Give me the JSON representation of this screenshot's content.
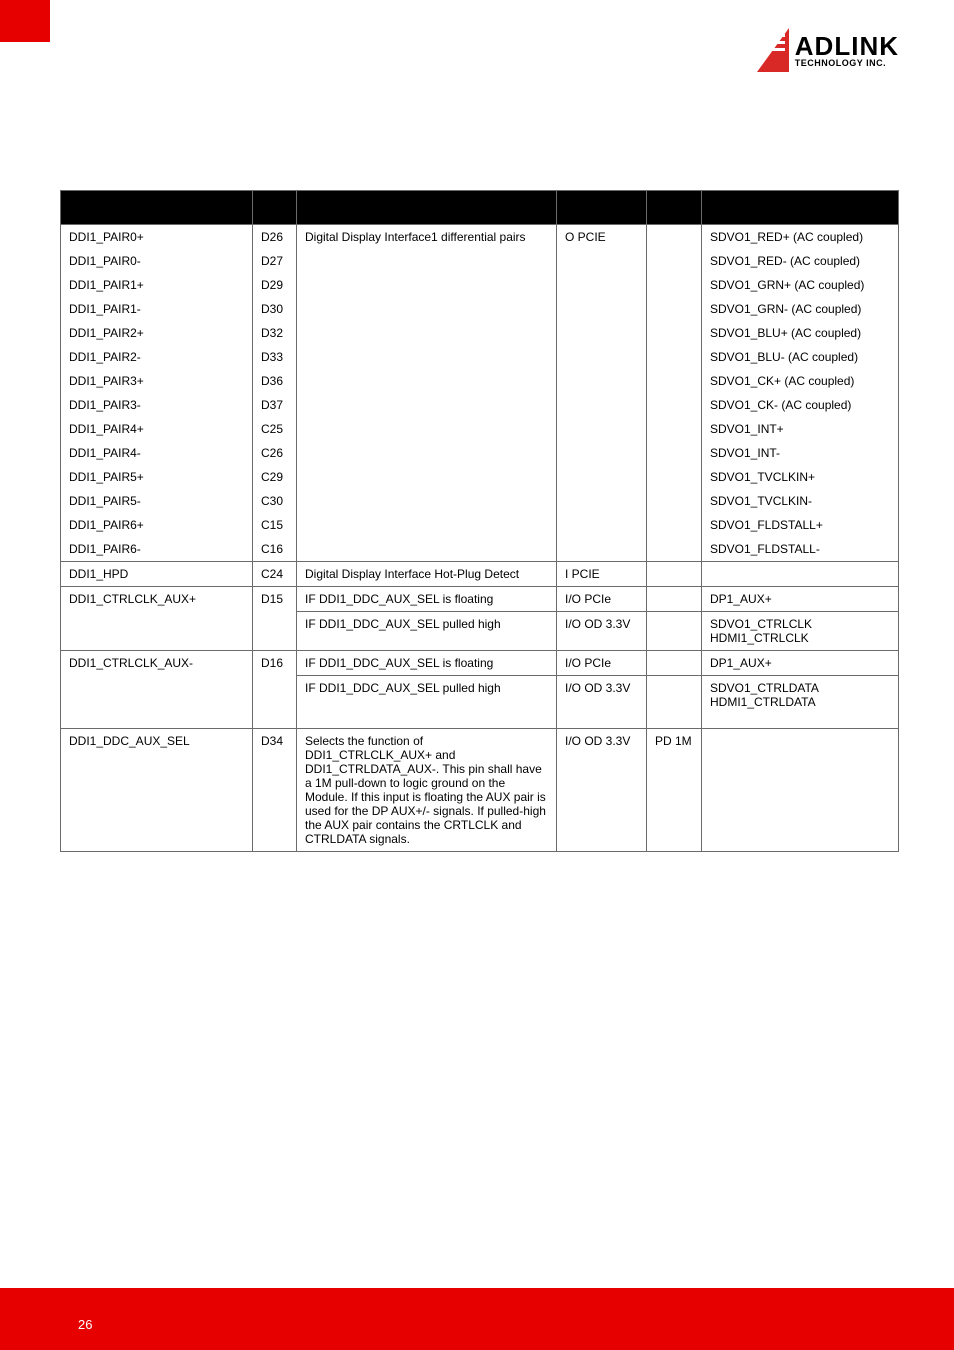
{
  "logo": {
    "main": "ADLINK",
    "sub": "TECHNOLOGY INC."
  },
  "page_number": "26",
  "table": {
    "headers": [
      "",
      "",
      "",
      "",
      "",
      ""
    ],
    "group1_desc": "Digital Display Interface1 differential pairs",
    "group1_type": "O PCIE",
    "group1": [
      {
        "signal": "DDI1_PAIR0+",
        "pin": "D26",
        "comment": "SDVO1_RED+  (AC coupled)"
      },
      {
        "signal": "DDI1_PAIR0-",
        "pin": "D27",
        "comment": "SDVO1_RED-  (AC coupled)"
      },
      {
        "signal": "DDI1_PAIR1+",
        "pin": "D29",
        "comment": "SDVO1_GRN+  (AC coupled)"
      },
      {
        "signal": "DDI1_PAIR1-",
        "pin": "D30",
        "comment": "SDVO1_GRN-  (AC coupled)"
      },
      {
        "signal": "DDI1_PAIR2+",
        "pin": "D32",
        "comment": "SDVO1_BLU+  (AC coupled)"
      },
      {
        "signal": "DDI1_PAIR2-",
        "pin": "D33",
        "comment": "SDVO1_BLU-  (AC coupled)"
      },
      {
        "signal": "DDI1_PAIR3+",
        "pin": "D36",
        "comment": "SDVO1_CK+  (AC coupled)"
      },
      {
        "signal": "DDI1_PAIR3-",
        "pin": "D37",
        "comment": "SDVO1_CK-  (AC coupled)"
      },
      {
        "signal": "DDI1_PAIR4+",
        "pin": "C25",
        "comment": "SDVO1_INT+"
      },
      {
        "signal": "DDI1_PAIR4-",
        "pin": "C26",
        "comment": "SDVO1_INT-"
      },
      {
        "signal": "DDI1_PAIR5+",
        "pin": "C29",
        "comment": "SDVO1_TVCLKIN+"
      },
      {
        "signal": "DDI1_PAIR5-",
        "pin": "C30",
        "comment": "SDVO1_TVCLKIN-"
      },
      {
        "signal": "DDI1_PAIR6+",
        "pin": "C15",
        "comment": "SDVO1_FLDSTALL+"
      },
      {
        "signal": "DDI1_PAIR6-",
        "pin": "C16",
        "comment": "SDVO1_FLDSTALL-"
      }
    ],
    "hpd": {
      "signal": "DDI1_HPD",
      "pin": "C24",
      "desc": "Digital Display Interface Hot-Plug Detect",
      "type": "I PCIE",
      "pupd": "",
      "comment": ""
    },
    "ctrlclk_plus": {
      "signal": "DDI1_CTRLCLK_AUX+",
      "pin": "D15",
      "rows": [
        {
          "desc": "IF DDI1_DDC_AUX_SEL is floating",
          "type": "I/O PCIe",
          "pupd": "",
          "comment": "DP1_AUX+"
        },
        {
          "desc": "IF DDI1_DDC_AUX_SEL pulled high",
          "type": "I/O OD 3.3V",
          "pupd": "",
          "comment": "SDVO1_CTRLCLK\nHDMI1_CTRLCLK"
        }
      ]
    },
    "ctrlclk_minus": {
      "signal": "DDI1_CTRLCLK_AUX-",
      "pin": "D16",
      "rows": [
        {
          "desc": "IF DDI1_DDC_AUX_SEL is floating",
          "type": "I/O PCIe",
          "pupd": "",
          "comment": "DP1_AUX+"
        },
        {
          "desc": "IF DDI1_DDC_AUX_SEL pulled high",
          "type": "I/O OD 3.3V",
          "pupd": "",
          "comment": "SDVO1_CTRLDATA\nHDMI1_CTRLDATA"
        }
      ]
    },
    "aux_sel": {
      "signal": "DDI1_DDC_AUX_SEL",
      "pin": "D34",
      "desc": "Selects the function of DDI1_CTRLCLK_AUX+ and DDI1_CTRLDATA_AUX-.  This pin shall have a 1M pull-down to logic ground on the Module.  If this input is floating the AUX pair is used for the DP AUX+/- signals.  If pulled-high the AUX pair contains the CRTLCLK and CTRLDATA signals.",
      "type": "I/O OD 3.3V",
      "pupd": "PD 1M",
      "comment": ""
    }
  }
}
